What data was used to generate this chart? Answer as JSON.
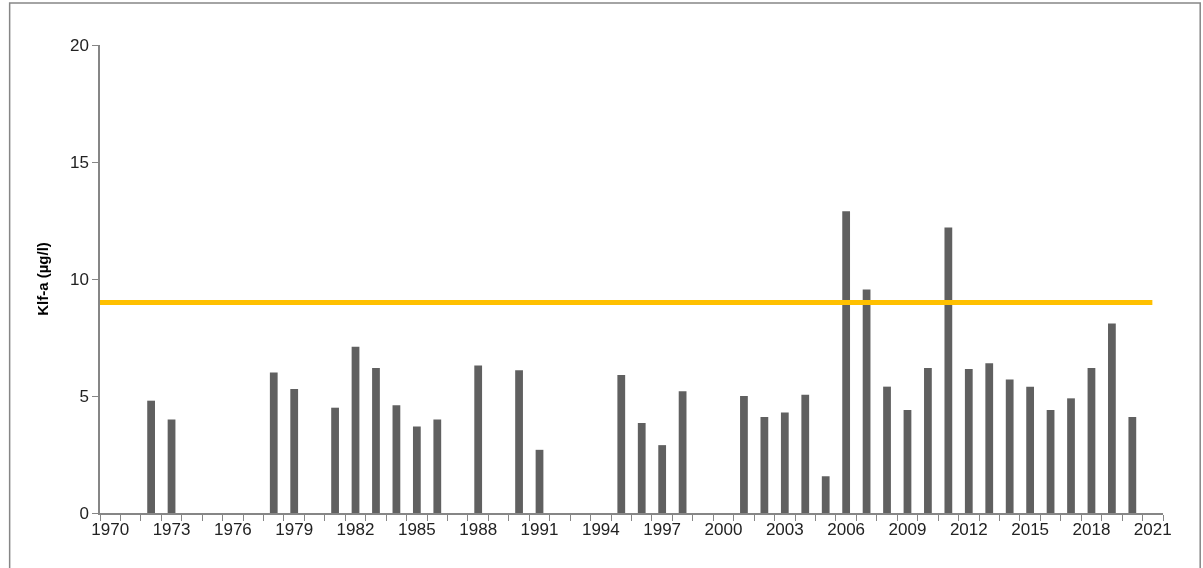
{
  "chart_data": {
    "type": "bar",
    "ylabel": "Klf-a (µg/l)",
    "categories": [
      "1970",
      null,
      null,
      "1973",
      null,
      null,
      "1976",
      null,
      null,
      "1979",
      null,
      null,
      "1982",
      null,
      null,
      "1985",
      null,
      null,
      "1988",
      null,
      null,
      "1991",
      null,
      null,
      "1994",
      null,
      null,
      "1997",
      null,
      null,
      "2000",
      null,
      null,
      "2003",
      null,
      null,
      "2006",
      null,
      null,
      "2009",
      null,
      null,
      "2012",
      null,
      null,
      "2015",
      null,
      null,
      "2018",
      null,
      null,
      "2021"
    ],
    "values": [
      null,
      null,
      4.8,
      4.0,
      null,
      null,
      null,
      null,
      6.0,
      5.3,
      null,
      4.5,
      7.1,
      6.2,
      4.6,
      3.7,
      4.0,
      null,
      6.3,
      null,
      6.1,
      2.7,
      null,
      null,
      null,
      5.9,
      3.85,
      2.9,
      5.2,
      null,
      null,
      5.0,
      4.1,
      4.3,
      5.05,
      1.57,
      12.9,
      9.55,
      5.4,
      4.4,
      6.2,
      12.2,
      6.15,
      6.4,
      5.7,
      5.4,
      4.4,
      4.9,
      6.2,
      8.1,
      4.1,
      null
    ],
    "color": "#606060",
    "ylim": [
      0,
      20
    ],
    "yticks": [
      0,
      5,
      10,
      15,
      20
    ],
    "ref_lines": [
      {
        "axis": "y",
        "value": 9,
        "color": "#ffc000"
      }
    ]
  }
}
